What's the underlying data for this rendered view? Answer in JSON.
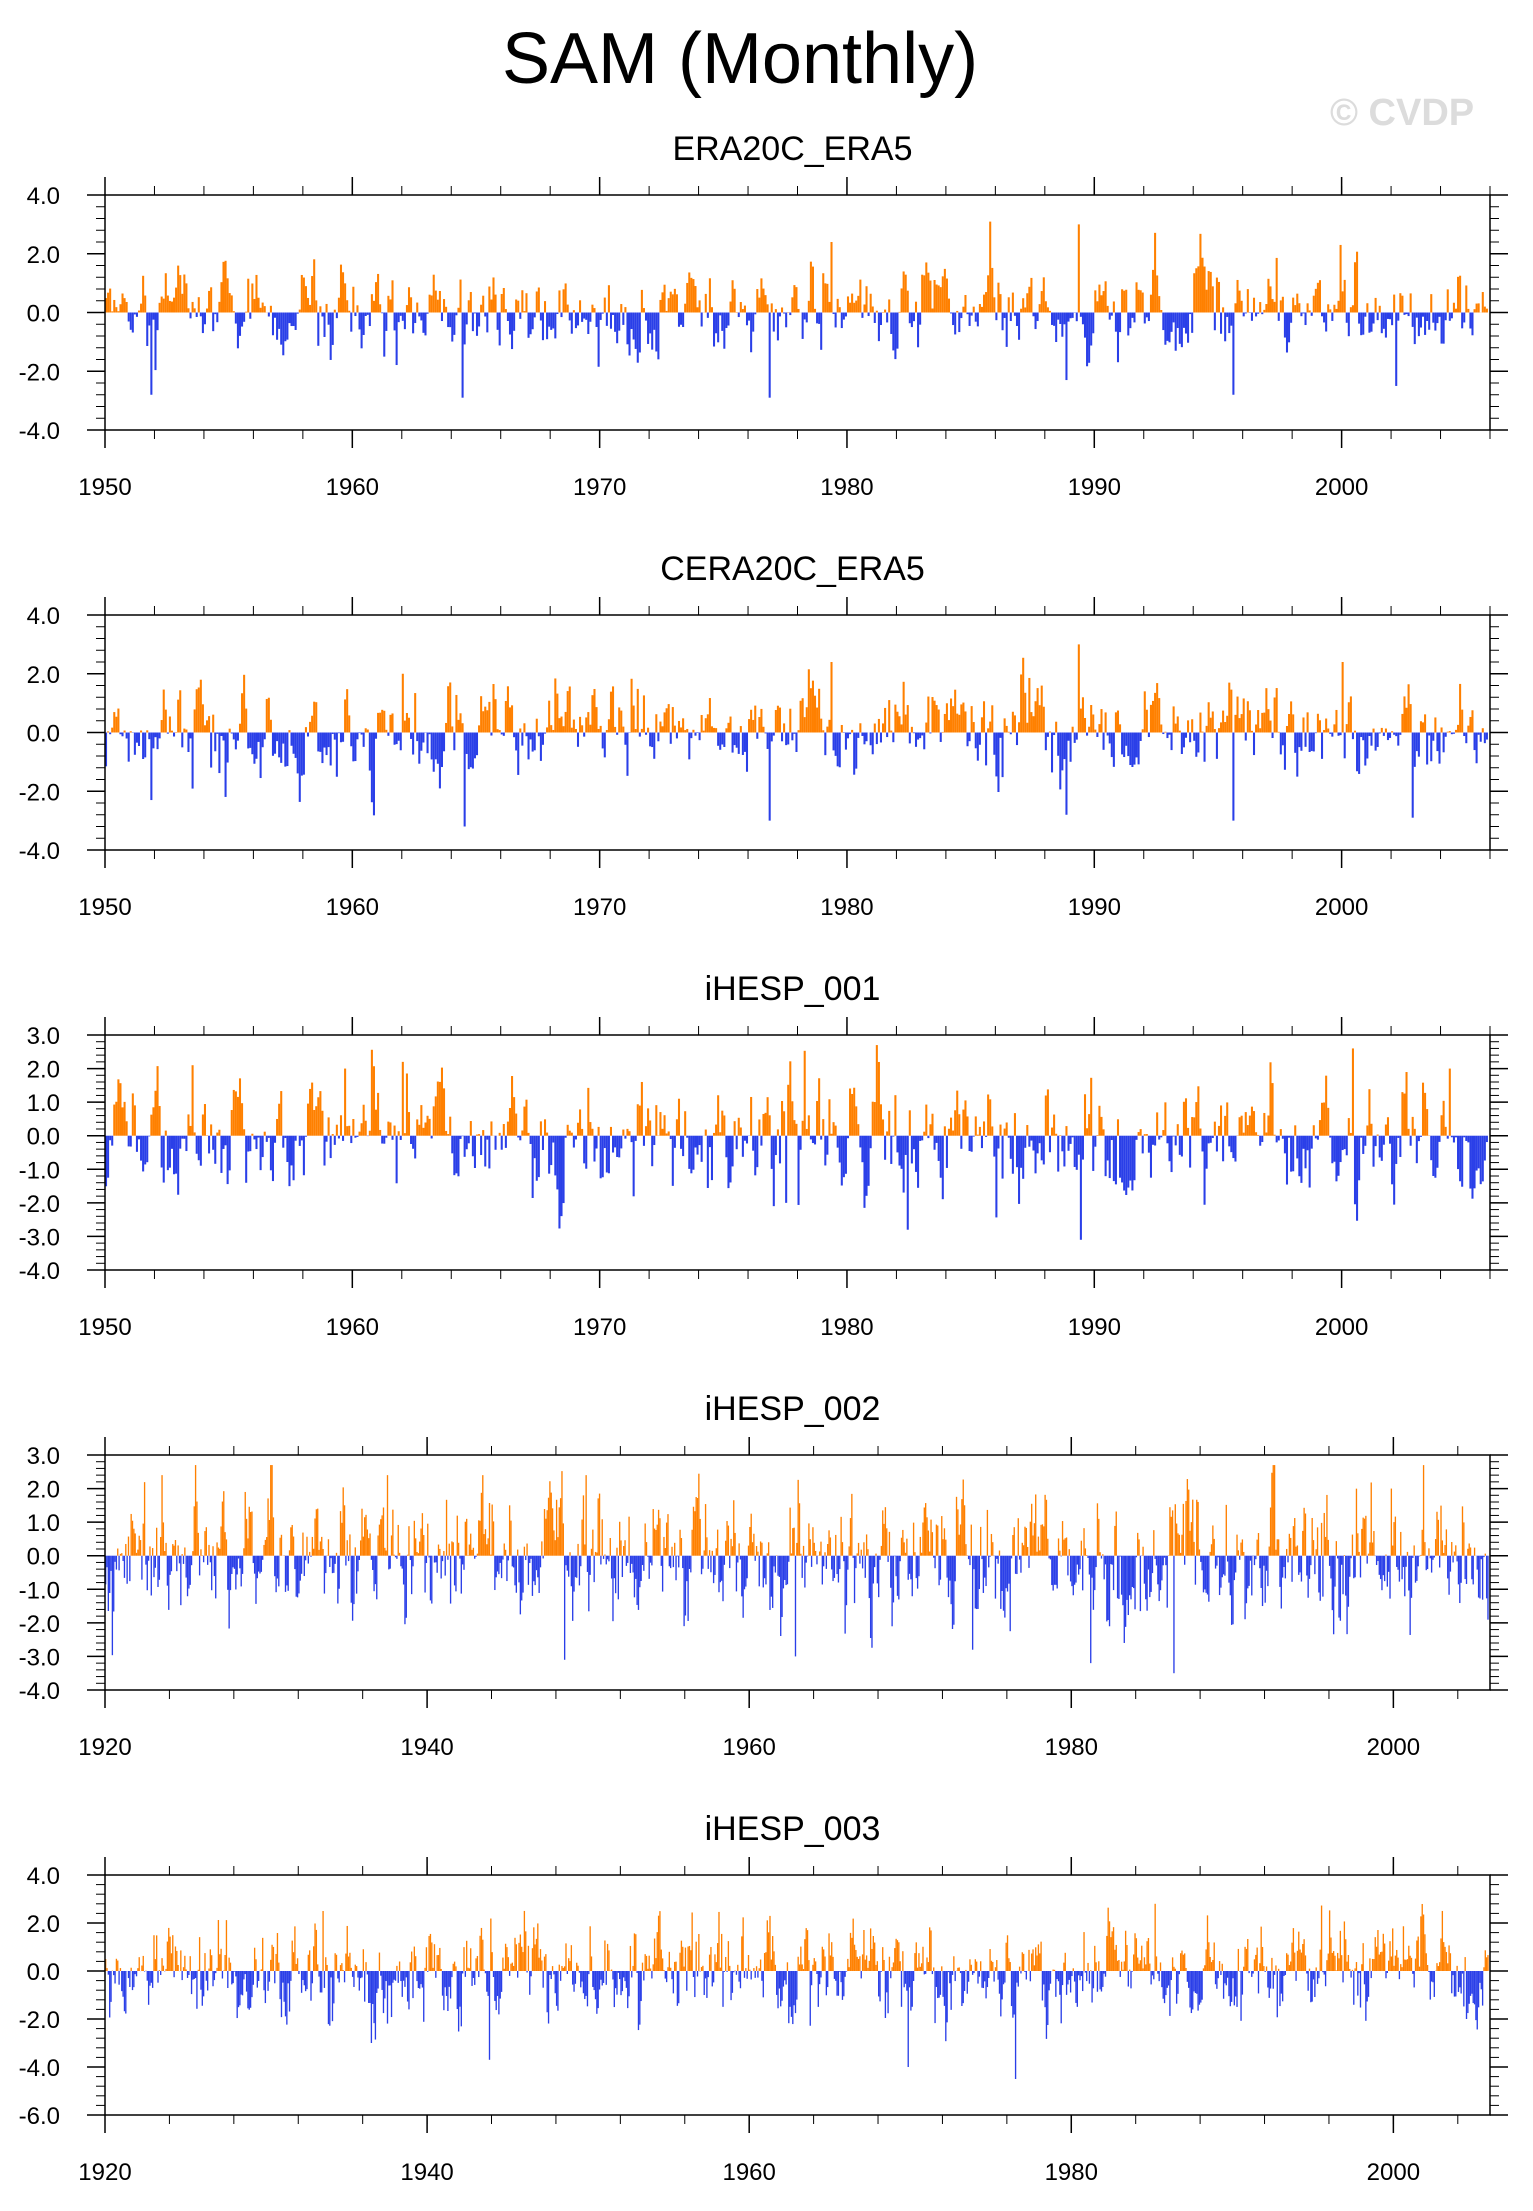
{
  "title": "SAM (Monthly)",
  "watermark": "© CVDP",
  "colors": {
    "positive": "#ff8000",
    "negative": "#2a3fe8",
    "frame": "#000000"
  },
  "chart_data": [
    {
      "type": "bar",
      "title": "ERA20C_ERA5",
      "xlim": [
        1950,
        2006
      ],
      "ylim": [
        -4.0,
        4.0
      ],
      "xticks": [
        1950,
        1960,
        1970,
        1980,
        1990,
        2000
      ],
      "yticks": [
        "4.0",
        "2.0",
        "0.0",
        "-2.0",
        "-4.0"
      ],
      "ytick_values": [
        4.0,
        2.0,
        0.0,
        -2.0,
        -4.0
      ],
      "seed": 11,
      "spikes": [
        [
          1951.8,
          -2.8
        ],
        [
          1964.4,
          -2.9
        ],
        [
          1976.8,
          -2.9
        ],
        [
          1979.3,
          2.4
        ],
        [
          1989.3,
          3.0
        ],
        [
          1988.8,
          -2.3
        ],
        [
          1995.6,
          -2.8
        ],
        [
          1999.9,
          2.3
        ],
        [
          2002.2,
          -2.5
        ]
      ],
      "scale": 0.75
    },
    {
      "type": "bar",
      "title": "CERA20C_ERA5",
      "xlim": [
        1950,
        2006
      ],
      "ylim": [
        -4.0,
        4.0
      ],
      "xticks": [
        1950,
        1960,
        1970,
        1980,
        1990,
        2000
      ],
      "yticks": [
        "4.0",
        "2.0",
        "0.0",
        "-2.0",
        "-4.0"
      ],
      "ytick_values": [
        4.0,
        2.0,
        0.0,
        -2.0,
        -4.0
      ],
      "seed": 23,
      "spikes": [
        [
          1951.8,
          -2.3
        ],
        [
          1962.0,
          2.0
        ],
        [
          1964.5,
          -3.2
        ],
        [
          1976.8,
          -3.0
        ],
        [
          1979.3,
          2.4
        ],
        [
          1989.3,
          3.0
        ],
        [
          1988.8,
          -2.8
        ],
        [
          1995.6,
          -3.0
        ],
        [
          2000.0,
          2.4
        ],
        [
          2002.8,
          -2.9
        ]
      ],
      "scale": 0.8
    },
    {
      "type": "bar",
      "title": "iHESP_001",
      "xlim": [
        1950,
        2006
      ],
      "ylim": [
        -4.0,
        3.0
      ],
      "xticks": [
        1950,
        1960,
        1970,
        1980,
        1990,
        2000
      ],
      "yticks": [
        "3.0",
        "2.0",
        "1.0",
        "0.0",
        "-1.0",
        "-2.0",
        "-3.0",
        "-4.0"
      ],
      "ytick_values": [
        3.0,
        2.0,
        1.0,
        0.0,
        -1.0,
        -2.0,
        -3.0,
        -4.0
      ],
      "seed": 37,
      "spikes": [
        [
          1953.5,
          2.1
        ],
        [
          1959.7,
          2.0
        ],
        [
          1962.0,
          2.2
        ],
        [
          1977.5,
          -2.0
        ],
        [
          1982.4,
          -2.8
        ],
        [
          1989.4,
          -3.1
        ],
        [
          2000.4,
          2.6
        ],
        [
          2004.3,
          2.0
        ]
      ],
      "scale": 0.85
    },
    {
      "type": "bar",
      "title": "iHESP_002",
      "xlim": [
        1920,
        2006
      ],
      "ylim": [
        -4.0,
        3.0
      ],
      "xticks": [
        1920,
        1940,
        1960,
        1980,
        2000
      ],
      "yticks": [
        "3.0",
        "2.0",
        "1.0",
        "0.0",
        "-1.0",
        "-2.0",
        "-3.0",
        "-4.0"
      ],
      "ytick_values": [
        3.0,
        2.0,
        1.0,
        0.0,
        -1.0,
        -2.0,
        -3.0,
        -4.0
      ],
      "seed": 53,
      "spikes": [
        [
          1937.5,
          2.4
        ],
        [
          1948.5,
          -3.1
        ],
        [
          1949.8,
          2.4
        ],
        [
          1962.8,
          -3.0
        ],
        [
          1973.8,
          -2.8
        ],
        [
          1981.2,
          -3.2
        ],
        [
          1986.3,
          -3.5
        ],
        [
          1999.8,
          2.0
        ]
      ],
      "scale": 0.9
    },
    {
      "type": "bar",
      "title": "iHESP_003",
      "xlim": [
        1920,
        2006
      ],
      "ylim": [
        -6.0,
        4.0
      ],
      "xticks": [
        1920,
        1940,
        1960,
        1980,
        2000
      ],
      "yticks": [
        "4.0",
        "2.0",
        "0.0",
        "-2.0",
        "-4.0",
        "-6.0"
      ],
      "ytick_values": [
        4.0,
        2.0,
        0.0,
        -2.0,
        -4.0,
        -6.0
      ],
      "seed": 71,
      "spikes": [
        [
          1933.5,
          2.5
        ],
        [
          1936.5,
          -3.0
        ],
        [
          1943.8,
          -3.7
        ],
        [
          1969.8,
          -4.0
        ],
        [
          1976.5,
          -4.5
        ],
        [
          1985.2,
          2.8
        ],
        [
          2004.5,
          -2.0
        ]
      ],
      "scale": 1.0
    }
  ]
}
